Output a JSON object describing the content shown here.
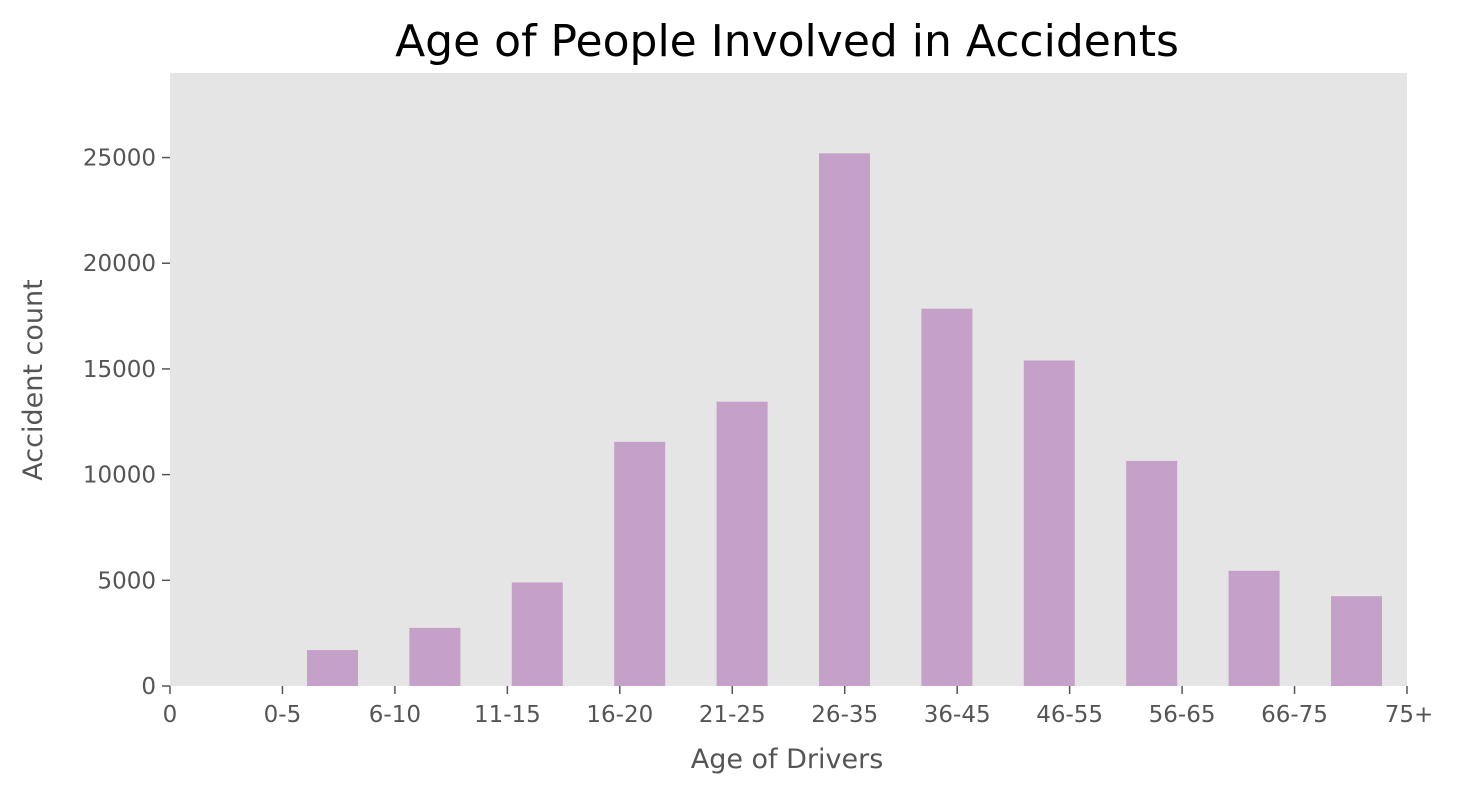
{
  "chart_data": {
    "type": "bar",
    "title": "Age of People Involved in Accidents",
    "xlabel": "Age of Drivers",
    "ylabel": "Accident count",
    "x_tick_labels": [
      "0",
      "0-5",
      "6-10",
      "11-15",
      "16-20",
      "21-25",
      "26-35",
      "36-45",
      "46-55",
      "56-65",
      "66-75",
      "75+"
    ],
    "y_ticks": [
      0,
      5000,
      10000,
      15000,
      20000,
      25000
    ],
    "ylim": [
      0,
      29000
    ],
    "bars": [
      {
        "label": "bin-1",
        "value": 1700
      },
      {
        "label": "bin-2",
        "value": 2750
      },
      {
        "label": "bin-3",
        "value": 4900
      },
      {
        "label": "bin-4",
        "value": 11550
      },
      {
        "label": "bin-5",
        "value": 13450
      },
      {
        "label": "bin-6",
        "value": 25200
      },
      {
        "label": "bin-7",
        "value": 17850
      },
      {
        "label": "bin-8",
        "value": 15400
      },
      {
        "label": "bin-9",
        "value": 10650
      },
      {
        "label": "bin-10",
        "value": 5450
      },
      {
        "label": "bin-11",
        "value": 4250
      }
    ],
    "bar_color": "#c5a0c8",
    "plot_background": "#e5e5e5",
    "grid": false,
    "legend": "none"
  }
}
